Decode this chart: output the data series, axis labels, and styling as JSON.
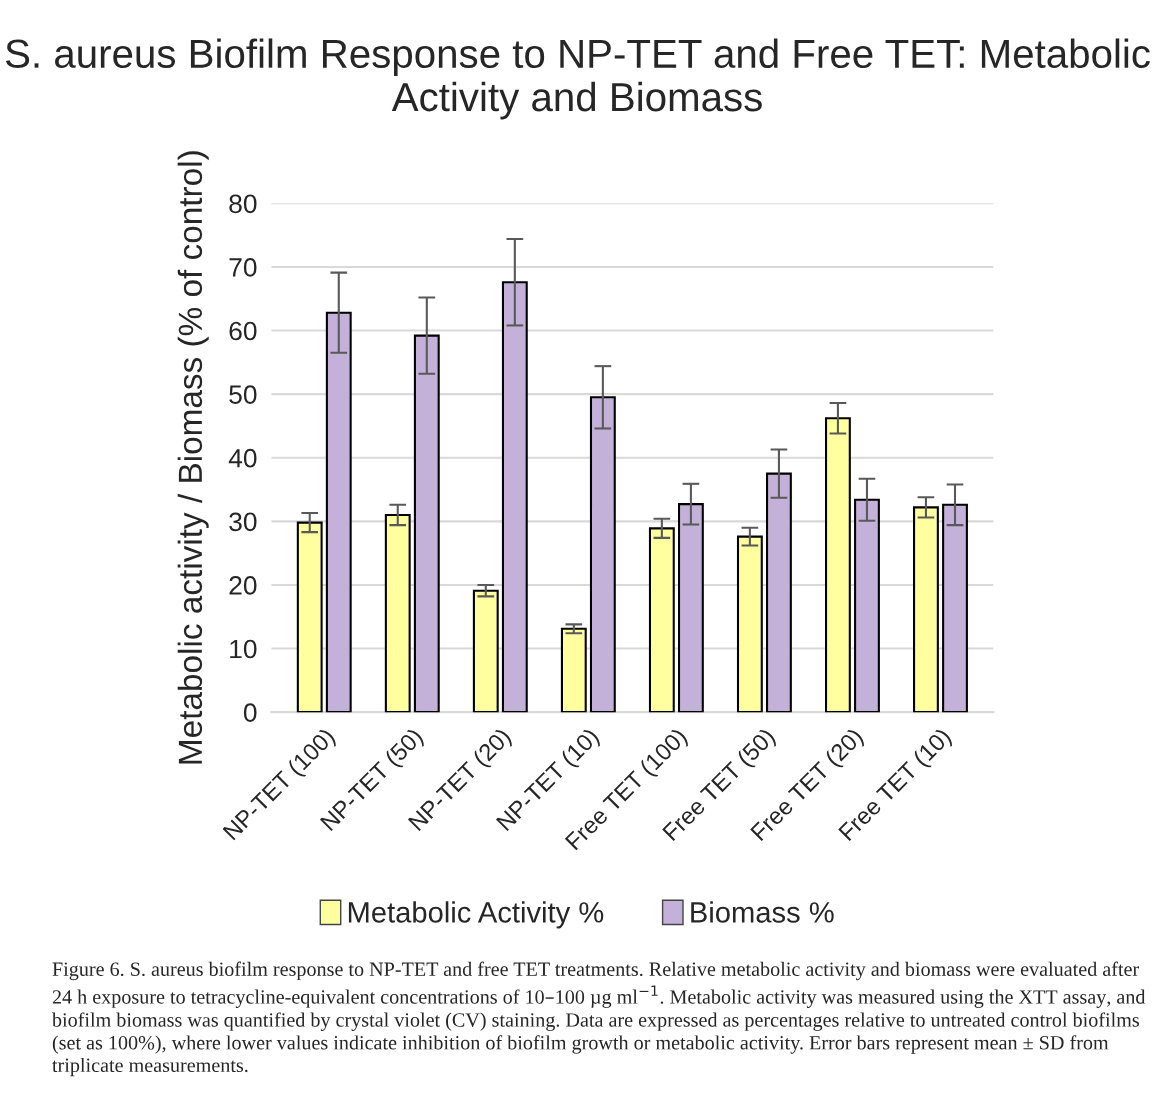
{
  "chart_data": {
    "type": "bar",
    "title": "S. aureus Biofilm Response to NP-TET and Free TET: Metabolic Activity and Biomass",
    "ylabel": "Metabolic activity / Biomass (% of control)",
    "categories": [
      "NP-TET (100)",
      "NP-TET (50)",
      "NP-TET (20)",
      "NP-TET (10)",
      "Free TET (100)",
      "Free TET (50)",
      "Free TET (20)",
      "Free TET (10)"
    ],
    "series": [
      {
        "name": "Metabolic Activity %",
        "color": "#ffff9f",
        "values": [
          29.8,
          31.0,
          19.1,
          13.1,
          28.9,
          27.6,
          46.2,
          32.2
        ],
        "errors": [
          1.5,
          1.6,
          0.9,
          0.7,
          1.5,
          1.4,
          2.4,
          1.6
        ]
      },
      {
        "name": "Biomass %",
        "color": "#c3b1d9",
        "values": [
          62.8,
          59.2,
          67.6,
          49.5,
          32.7,
          37.5,
          33.4,
          32.6
        ],
        "errors": [
          6.3,
          6.0,
          6.8,
          4.9,
          3.2,
          3.8,
          3.3,
          3.2
        ]
      }
    ],
    "ylim": [
      0,
      80
    ],
    "yticks": [
      0,
      10,
      20,
      30,
      40,
      50,
      60,
      70,
      80
    ],
    "grid": "y",
    "legend": "bottom",
    "annotations": [
      "Figure 6. S. aureus biofilm response to NP-TET and free TET treatments. Relative metabolic activity and biomass were evaluated after 24 h exposure to tetracycline-equivalent concentrations of 10–100 µg ml$^{−1}$. Metabolic activity was measured using the XTT assay, and biofilm biomass was quantified by crystal violet (CV) staining. Data are expressed as percentages relative to untreated control biofilms (set as 100%), where lower values indicate inhibition of biofilm growth or metabolic activity. Error bars represent mean ± SD from triplicate measurements."
    ]
  }
}
